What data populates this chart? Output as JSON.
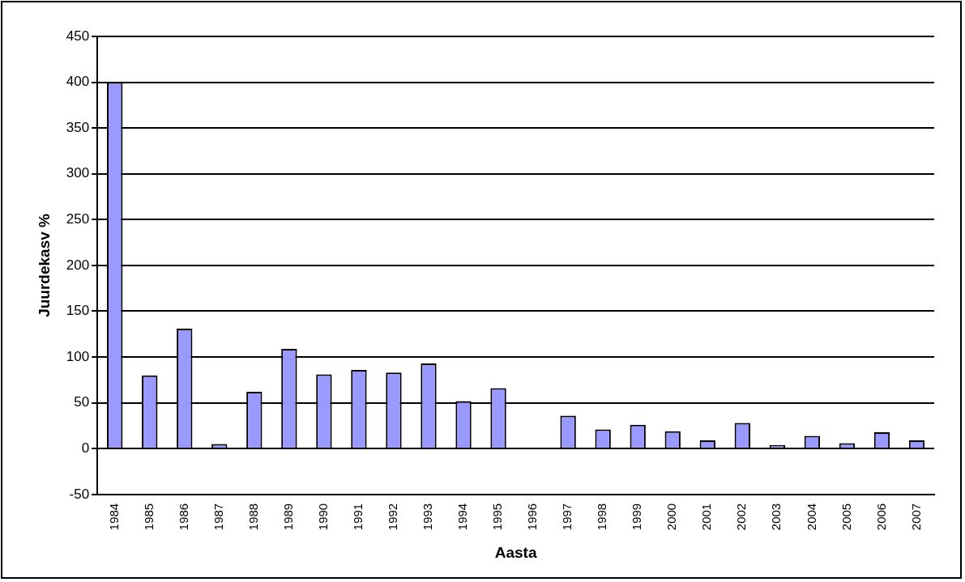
{
  "chart_data": {
    "type": "bar",
    "xlabel": "Aasta",
    "ylabel": "Juurdekasv %",
    "categories": [
      "1984",
      "1985",
      "1986",
      "1987",
      "1988",
      "1989",
      "1990",
      "1991",
      "1992",
      "1993",
      "1994",
      "1995",
      "1996",
      "1997",
      "1998",
      "1999",
      "2000",
      "2001",
      "2002",
      "2003",
      "2004",
      "2005",
      "2006",
      "2007"
    ],
    "series": [
      {
        "color": "#9999ff",
        "values": [
          400,
          80,
          131,
          5,
          62,
          109,
          81,
          86,
          83,
          93,
          52,
          66,
          0,
          36,
          21,
          26,
          19,
          9,
          28,
          4,
          14,
          6,
          18,
          9
        ]
      }
    ],
    "ylim": [
      -50,
      450
    ],
    "yticks": [
      -50,
      0,
      50,
      100,
      150,
      200,
      250,
      300,
      350,
      400,
      450
    ],
    "grid": "y",
    "legend": false
  }
}
